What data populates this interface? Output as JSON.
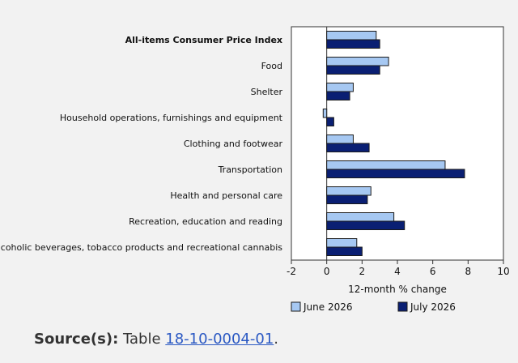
{
  "chart_data": {
    "type": "bar",
    "orientation": "horizontal",
    "categories": [
      "All-items Consumer Price Index",
      "Food",
      "Shelter",
      "Household operations, furnishings and equipment",
      "Clothing and footwear",
      "Transportation",
      "Health and personal care",
      "Recreation, education and reading",
      "Alcoholic beverages, tobacco products and recreational cannabis"
    ],
    "bold_category": "All-items Consumer Price Index",
    "series": [
      {
        "name": "June 2026",
        "color": "#a6c8f2",
        "values": [
          2.8,
          3.5,
          1.5,
          -0.2,
          1.5,
          6.7,
          2.5,
          3.8,
          1.7
        ]
      },
      {
        "name": "July 2026",
        "color": "#0a1f73",
        "values": [
          3.0,
          3.0,
          1.3,
          0.4,
          2.4,
          7.8,
          2.3,
          4.4,
          2.0
        ]
      }
    ],
    "xlabel": "12-month % change",
    "ylabel": "",
    "xlim": [
      -2,
      10
    ],
    "xticks": [
      -2,
      0,
      2,
      4,
      6,
      8,
      10
    ],
    "grid": false,
    "legend_position": "bottom"
  },
  "source": {
    "label": "Source(s):",
    "text": "Table",
    "link_text": "18-10-0004-01",
    "suffix": "."
  }
}
